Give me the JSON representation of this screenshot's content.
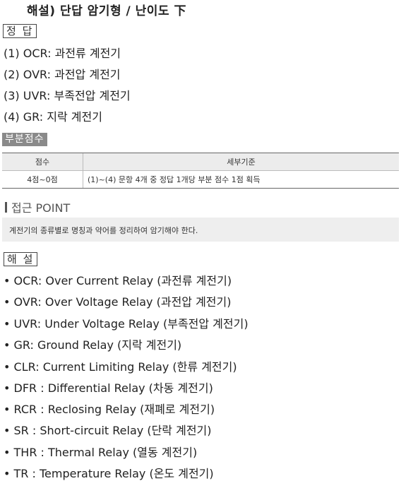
{
  "header": {
    "title": "해설) 단답 암기형 / 난이도 下"
  },
  "answer_section": {
    "label": "정 답",
    "lines": [
      "(1) OCR: 과전류 계전기",
      "(2) OVR: 과전압 계전기",
      "(3) UVR: 부족전압 계전기",
      "(4) GR: 지락 계전기"
    ]
  },
  "partial_score": {
    "label": "부분점수",
    "headers": [
      "점수",
      "세부기준"
    ],
    "rows": [
      [
        "4점~0점",
        "(1)~(4) 문항 4개 중 정답 1개당 부분 점수 1점 획득"
      ]
    ]
  },
  "point": {
    "heading": "접근 POINT",
    "text": "계전기의 종류별로 명칭과 약어를 정리하여 암기해야 한다."
  },
  "explanation": {
    "label": "해 설",
    "items": [
      "• OCR: Over Current Relay (과전류 계전기)",
      "• OVR: Over Voltage Relay (과전압 계전기)",
      "• UVR: Under Voltage Relay (부족전압 계전기)",
      "• GR: Ground Relay (지락 계전기)",
      "• CLR: Current Limiting Relay (한류 계전기)",
      "• DFR : Differential Relay (차동 계전기)",
      "• RCR : Reclosing Relay (재폐로 계전기)",
      "• SR : Short-circuit Relay (단락 계전기)",
      "• THR : Thermal Relay (열동 계전기)",
      "• TR : Temperature Relay (온도 계전기)"
    ]
  }
}
